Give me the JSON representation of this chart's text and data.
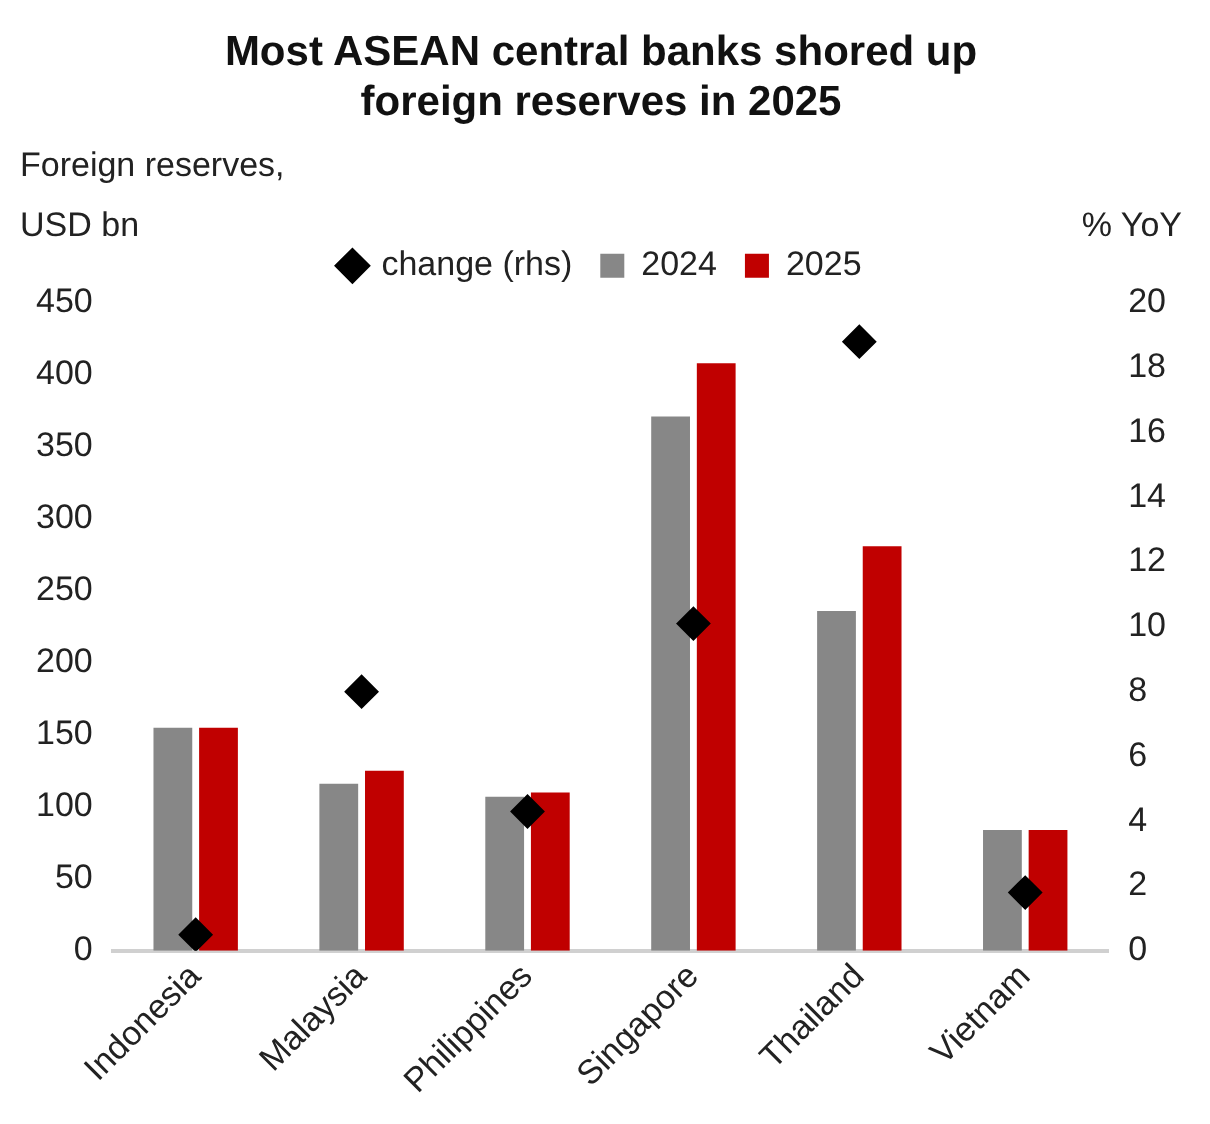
{
  "chart_data": {
    "type": "bar",
    "title": "Most ASEAN central banks shored up foreign reserves in 2025",
    "ylabel": "Foreign reserves, USD bn",
    "y2label": "% YoY",
    "categories": [
      "Indonesia",
      "Malaysia",
      "Philippines",
      "Singapore",
      "Thailand",
      "Vietnam"
    ],
    "series": [
      {
        "name": "2024",
        "color": "#878787",
        "values": [
          155,
          116,
          107,
          371,
          236,
          84
        ]
      },
      {
        "name": "2025",
        "color": "#c00000",
        "values": [
          155,
          125,
          110,
          408,
          281,
          84
        ]
      },
      {
        "name": "change (rhs)",
        "type": "scatter",
        "axis": "y2",
        "color": "#000000",
        "marker": "diamond",
        "values": [
          0.5,
          8.0,
          4.3,
          10.1,
          18.8,
          1.8
        ]
      }
    ],
    "ylim": [
      0,
      450
    ],
    "yticks": [
      0,
      50,
      100,
      150,
      200,
      250,
      300,
      350,
      400,
      450
    ],
    "y2lim": [
      0,
      20
    ],
    "y2ticks": [
      0,
      2,
      4,
      6,
      8,
      10,
      12,
      14,
      16,
      18,
      20
    ],
    "grid": false,
    "legend": "top"
  }
}
